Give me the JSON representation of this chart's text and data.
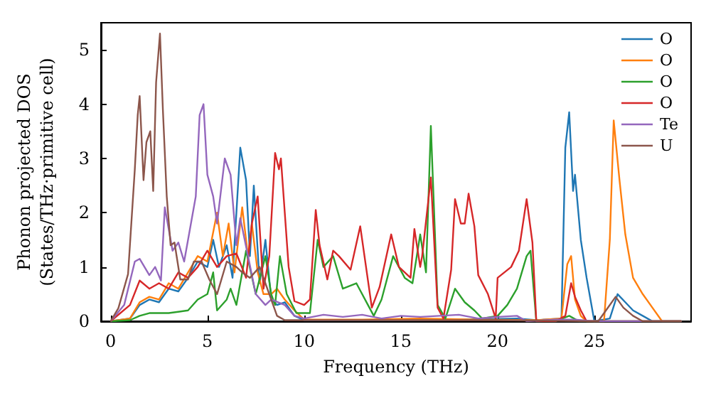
{
  "chart_data": {
    "type": "line",
    "xlabel": "Frequency (THz)",
    "ylabel": "Phonon projected DOS\n(States/THz·primitive cell)",
    "xlim": [
      -0.5,
      30
    ],
    "ylim": [
      0,
      5.5
    ],
    "xticks": [
      0,
      5,
      10,
      15,
      20,
      25
    ],
    "yticks": [
      0,
      1,
      2,
      3,
      4,
      5
    ],
    "legend": "top right",
    "marker": "none",
    "series": [
      {
        "name": "O",
        "color": "#1f77b4",
        "x": [
          0,
          1,
          1.5,
          2,
          2.5,
          3,
          3.5,
          4,
          4.5,
          5,
          5.3,
          5.6,
          6,
          6.3,
          6.7,
          7,
          7.2,
          7.4,
          7.7,
          8,
          8.3,
          8.6,
          9,
          9.5,
          10,
          12,
          15,
          18,
          21,
          22,
          23.3,
          23.5,
          23.7,
          23.9,
          24,
          24.3,
          24.6,
          25,
          25.8,
          26.2,
          26.6,
          27,
          27.5,
          28,
          29.5
        ],
        "values": [
          0,
          0.05,
          0.3,
          0.4,
          0.35,
          0.6,
          0.55,
          0.8,
          1.1,
          1,
          1.5,
          1,
          1.4,
          0.8,
          3.2,
          2.6,
          1.2,
          2.5,
          0.7,
          1.5,
          0.4,
          0.3,
          0.35,
          0.1,
          0.02,
          0.02,
          0.02,
          0.03,
          0.05,
          0.02,
          0.05,
          3.2,
          3.85,
          2.4,
          2.7,
          1.5,
          0.8,
          0,
          0.05,
          0.5,
          0.35,
          0.2,
          0.1,
          0,
          0
        ]
      },
      {
        "name": "O",
        "color": "#ff7f0e",
        "x": [
          0,
          1,
          1.5,
          2,
          2.5,
          3,
          3.5,
          4,
          4.5,
          5,
          5.5,
          5.8,
          6.1,
          6.4,
          6.8,
          7.1,
          7.3,
          7.6,
          7.9,
          8.3,
          8.6,
          9,
          9.5,
          10,
          13,
          16,
          19,
          22,
          23.3,
          23.6,
          23.8,
          24,
          24.3,
          24.6,
          25.5,
          25.8,
          26,
          26.3,
          26.6,
          27,
          27.5,
          28,
          28.5,
          29.5
        ],
        "values": [
          0,
          0.05,
          0.35,
          0.45,
          0.4,
          0.7,
          0.6,
          0.9,
          1.2,
          1.1,
          2,
          1.2,
          1.8,
          0.9,
          2.1,
          1.2,
          1.8,
          0.9,
          0.5,
          0.5,
          0.6,
          0.4,
          0.2,
          0.03,
          0.03,
          0.05,
          0.03,
          0.02,
          0.05,
          1.05,
          1.2,
          0.4,
          0.1,
          0,
          0,
          1.5,
          3.7,
          2.6,
          1.6,
          0.8,
          0.5,
          0.25,
          0,
          0
        ]
      },
      {
        "name": "O",
        "color": "#2ca02c",
        "x": [
          0,
          1,
          1.5,
          2,
          3,
          4,
          4.5,
          5,
          5.3,
          5.5,
          6,
          6.2,
          6.5,
          7,
          7.5,
          8,
          8.3,
          8.5,
          8.75,
          9.1,
          9.6,
          10.3,
          10.7,
          11,
          11.5,
          12,
          12.7,
          13.3,
          13.6,
          14,
          14.6,
          15.2,
          15.6,
          16,
          16.3,
          16.55,
          16.9,
          17.3,
          17.8,
          18.3,
          18.8,
          19.2,
          20,
          20.5,
          21,
          21.5,
          21.7,
          22,
          23,
          23.7,
          24.2,
          25,
          29.5
        ],
        "values": [
          0,
          0.02,
          0.1,
          0.15,
          0.15,
          0.2,
          0.4,
          0.5,
          0.9,
          0.2,
          0.4,
          0.6,
          0.3,
          1.3,
          0.5,
          1.2,
          0.5,
          0.3,
          1.2,
          0.5,
          0.15,
          0.15,
          1.5,
          1,
          1.2,
          0.6,
          0.7,
          0.3,
          0.1,
          0.4,
          1.2,
          0.8,
          0.7,
          1.6,
          0.9,
          3.6,
          0.3,
          0.05,
          0.6,
          0.35,
          0.2,
          0.05,
          0.1,
          0.3,
          0.6,
          1.2,
          1.3,
          0,
          0,
          0.1,
          0,
          0,
          0
        ]
      },
      {
        "name": "O",
        "color": "#d62728",
        "x": [
          0,
          1,
          1.5,
          2,
          2.5,
          3,
          3.5,
          4,
          4.5,
          5,
          5.5,
          6,
          6.5,
          7,
          7.3,
          7.6,
          7.9,
          8.2,
          8.5,
          8.7,
          8.8,
          9.2,
          9.5,
          10,
          10.3,
          10.6,
          10.8,
          11.2,
          11.5,
          11.8,
          12.4,
          12.9,
          13.5,
          13.9,
          14.5,
          14.9,
          15.5,
          15.7,
          16,
          16.1,
          16.55,
          16.9,
          17.2,
          17.6,
          17.8,
          18.1,
          18.3,
          18.5,
          18.8,
          19,
          19.5,
          19.9,
          20,
          20.7,
          21.1,
          21.5,
          21.8,
          22,
          23,
          23.5,
          23.8,
          24,
          24.3,
          24.6,
          29.5
        ],
        "values": [
          0,
          0.3,
          0.75,
          0.6,
          0.7,
          0.6,
          0.9,
          0.8,
          1,
          1.3,
          1,
          1.2,
          1.25,
          0.8,
          1.8,
          2.3,
          0.6,
          1.2,
          3.1,
          2.8,
          3,
          1,
          0.37,
          0.3,
          0.4,
          2.05,
          1.4,
          0.77,
          1.3,
          1.2,
          0.95,
          1.75,
          0.25,
          0.63,
          1.6,
          1,
          0.8,
          1.7,
          1,
          1.2,
          2.65,
          0.25,
          0.05,
          0.95,
          2.25,
          1.8,
          1.8,
          2.35,
          1.75,
          0.85,
          0.5,
          0.05,
          0.8,
          1,
          1.3,
          2.25,
          1.45,
          0,
          0,
          0.1,
          0.7,
          0.45,
          0.2,
          0,
          0
        ]
      },
      {
        "name": "Te",
        "color": "#9467bd",
        "x": [
          0,
          0.7,
          1.25,
          1.5,
          2,
          2.3,
          2.6,
          2.8,
          3.2,
          3.5,
          3.8,
          4,
          4.4,
          4.6,
          4.8,
          5,
          5.3,
          5.5,
          5.9,
          6.2,
          6.5,
          6.7,
          7.1,
          7.5,
          8,
          8.3,
          9,
          9.5,
          10,
          11,
          12,
          13,
          14,
          15,
          16,
          17,
          18,
          19,
          20,
          21,
          21.5,
          23,
          24,
          25,
          29.5
        ],
        "values": [
          0,
          0.3,
          1.1,
          1.15,
          0.85,
          1,
          0.75,
          2.1,
          1.3,
          1.45,
          1.1,
          1.5,
          2.3,
          3.8,
          4,
          2.7,
          2.3,
          1.8,
          3,
          2.7,
          1.4,
          1.9,
          1.2,
          0.5,
          0.3,
          0.4,
          0.3,
          0.1,
          0.05,
          0.12,
          0.08,
          0.12,
          0.05,
          0.1,
          0.08,
          0.1,
          0.12,
          0.05,
          0.08,
          0.1,
          0,
          0.03,
          0.03,
          0,
          0
        ]
      },
      {
        "name": "U",
        "color": "#8c564b",
        "x": [
          0,
          0.4,
          0.9,
          1.25,
          1.4,
          1.5,
          1.7,
          1.85,
          2.05,
          2.2,
          2.35,
          2.55,
          2.7,
          2.9,
          3.1,
          3.3,
          3.6,
          4,
          4.3,
          4.7,
          5.1,
          5.5,
          6,
          6.5,
          6.8,
          7.2,
          7.7,
          8.2,
          8.6,
          9,
          10,
          15,
          20,
          25,
          25.2,
          25.6,
          26.1,
          26.5,
          27,
          27.5,
          29.5
        ],
        "values": [
          0,
          0.24,
          0.87,
          2.8,
          3.8,
          4.15,
          2.6,
          3.3,
          3.5,
          2.4,
          4.4,
          5.3,
          3.9,
          2.3,
          1.4,
          1.45,
          0.77,
          0.77,
          1.1,
          1.1,
          0.77,
          0.5,
          1.1,
          1,
          0.9,
          0.8,
          1,
          0.5,
          0.1,
          0.02,
          0.02,
          0.02,
          0.02,
          0,
          0,
          0.2,
          0.45,
          0.25,
          0.1,
          0,
          0
        ]
      }
    ]
  }
}
